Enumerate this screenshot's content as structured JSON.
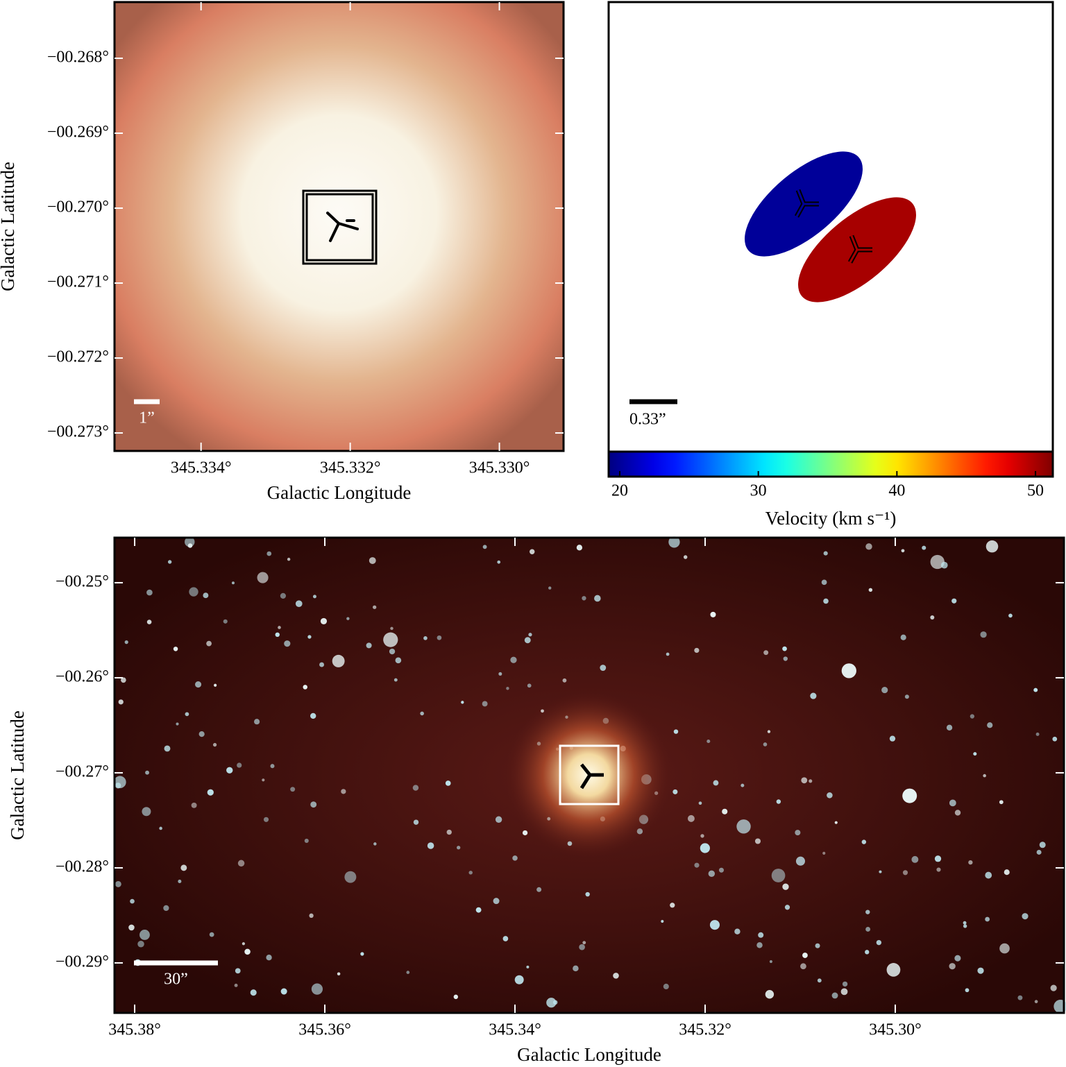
{
  "chart_data": [
    {
      "type": "image",
      "xlabel": "Galactic Longitude",
      "ylabel": "Galactic Latitude",
      "xlim": [
        345.33516,
        345.32914
      ],
      "xticks": [
        {
          "value": 345.334,
          "label": "345.334°"
        },
        {
          "value": 345.332,
          "label": "345.332°"
        },
        {
          "value": 345.33,
          "label": "345.330°"
        }
      ],
      "ylim": [
        -0.27324,
        -0.26725
      ],
      "yticks": [
        {
          "value": -0.268,
          "label": "−00.268°"
        },
        {
          "value": -0.269,
          "label": "−00.269°"
        },
        {
          "value": -0.27,
          "label": "−00.270°"
        },
        {
          "value": -0.271,
          "label": "−00.271°"
        },
        {
          "value": -0.272,
          "label": "−00.272°"
        },
        {
          "value": -0.273,
          "label": "−00.273°"
        }
      ],
      "scalebar": "1”"
    },
    {
      "type": "ellipse",
      "colorbar_label": "Velocity (km s⁻¹)",
      "clim": [
        19.2,
        51.25
      ],
      "cticks": [
        20,
        30,
        40,
        50
      ],
      "components": [
        {
          "velocity": 20
        },
        {
          "velocity": 50
        }
      ],
      "scalebar": "0.33”"
    },
    {
      "type": "image",
      "xlabel": "Galactic Longitude",
      "ylabel": "Galactic Latitude",
      "xlim": [
        345.38212,
        345.28226
      ],
      "xticks": [
        {
          "value": 345.38,
          "label": "345.38°"
        },
        {
          "value": 345.36,
          "label": "345.36°"
        },
        {
          "value": 345.34,
          "label": "345.34°"
        },
        {
          "value": 345.32,
          "label": "345.32°"
        },
        {
          "value": 345.3,
          "label": "345.30°"
        }
      ],
      "ylim": [
        -0.29526,
        -0.24526
      ],
      "yticks": [
        {
          "value": -0.25,
          "label": "−00.25°"
        },
        {
          "value": -0.26,
          "label": "−00.26°"
        },
        {
          "value": -0.27,
          "label": "−00.27°"
        },
        {
          "value": -0.28,
          "label": "−00.28°"
        },
        {
          "value": -0.29,
          "label": "−00.29°"
        }
      ],
      "scalebar": "30”"
    }
  ]
}
